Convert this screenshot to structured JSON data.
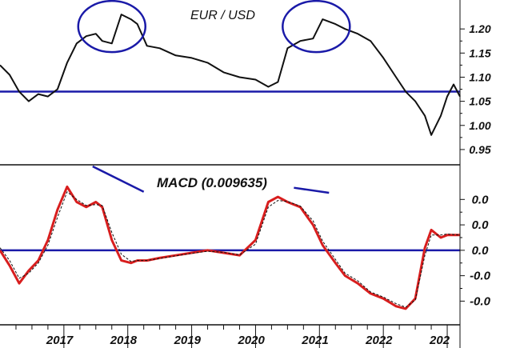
{
  "chart_data": [
    {
      "type": "line",
      "title": "EUR / USD",
      "xlabel": "",
      "ylabel": "",
      "x_ticks": [
        "2017",
        "2018",
        "2019",
        "2020",
        "2021",
        "2022",
        "202"
      ],
      "ylim": [
        0.92,
        1.26
      ],
      "y_ticks": [
        "1.20",
        "1.15",
        "1.10",
        "1.05",
        "1.00",
        "0.95"
      ],
      "y_tick_values": [
        1.2,
        1.15,
        1.1,
        1.05,
        1.0,
        0.95
      ],
      "reference_line": 1.07,
      "series": [
        {
          "color": "#111111",
          "x": [
            2016.0,
            2016.15,
            2016.3,
            2016.45,
            2016.6,
            2016.75,
            2016.9,
            2017.05,
            2017.2,
            2017.35,
            2017.5,
            2017.6,
            2017.75,
            2017.9,
            2018.05,
            2018.15,
            2018.3,
            2018.5,
            2018.75,
            2019.0,
            2019.25,
            2019.5,
            2019.75,
            2020.0,
            2020.2,
            2020.35,
            2020.5,
            2020.7,
            2020.9,
            2021.05,
            2021.25,
            2021.4,
            2021.6,
            2021.8,
            2022.0,
            2022.2,
            2022.35,
            2022.5,
            2022.65,
            2022.75,
            2022.9,
            2023.0,
            2023.1,
            2023.2
          ],
          "values": [
            1.125,
            1.105,
            1.07,
            1.05,
            1.065,
            1.06,
            1.075,
            1.13,
            1.17,
            1.185,
            1.19,
            1.175,
            1.17,
            1.23,
            1.22,
            1.21,
            1.165,
            1.16,
            1.145,
            1.14,
            1.13,
            1.11,
            1.1,
            1.095,
            1.08,
            1.09,
            1.16,
            1.175,
            1.18,
            1.22,
            1.21,
            1.2,
            1.19,
            1.175,
            1.14,
            1.1,
            1.07,
            1.05,
            1.02,
            0.98,
            1.02,
            1.06,
            1.085,
            1.06
          ]
        }
      ],
      "annotations": [
        {
          "type": "ellipse",
          "color": "#1a1aa8",
          "center_x": 2017.75,
          "center_y": 1.205
        },
        {
          "type": "ellipse",
          "color": "#1a1aa8",
          "center_x": 2020.95,
          "center_y": 1.205
        }
      ]
    },
    {
      "type": "line",
      "title": "MACD (0.009635)",
      "xlabel": "",
      "ylabel": "",
      "x_ticks": [
        "2017",
        "2018",
        "2019",
        "2020",
        "2021",
        "2022",
        "202"
      ],
      "ylim": [
        -0.0145,
        0.0165
      ],
      "y_ticks": [
        "0.0",
        "0.0",
        "0.0",
        "-0.0",
        "-0.0"
      ],
      "y_tick_values": [
        0.01,
        0.005,
        0.0,
        -0.005,
        -0.01
      ],
      "reference_line": 0.0,
      "series": [
        {
          "color": "#d81e1e",
          "x": [
            2016.0,
            2016.15,
            2016.3,
            2016.45,
            2016.6,
            2016.75,
            2016.9,
            2017.05,
            2017.2,
            2017.35,
            2017.5,
            2017.6,
            2017.75,
            2017.9,
            2018.05,
            2018.15,
            2018.3,
            2018.5,
            2018.75,
            2019.0,
            2019.25,
            2019.5,
            2019.75,
            2020.0,
            2020.2,
            2020.35,
            2020.5,
            2020.7,
            2020.9,
            2021.05,
            2021.25,
            2021.4,
            2021.6,
            2021.8,
            2022.0,
            2022.2,
            2022.35,
            2022.5,
            2022.65,
            2022.75,
            2022.9,
            2023.0,
            2023.1,
            2023.2
          ],
          "values": [
            0.0,
            -0.003,
            -0.0065,
            -0.004,
            -0.002,
            0.002,
            0.008,
            0.0125,
            0.0095,
            0.0085,
            0.0095,
            0.0085,
            0.002,
            -0.002,
            -0.0025,
            -0.002,
            -0.002,
            -0.0015,
            -0.001,
            -0.0005,
            0.0,
            -0.0005,
            -0.001,
            0.002,
            0.0095,
            0.0105,
            0.0095,
            0.0085,
            0.005,
            0.001,
            -0.0025,
            -0.005,
            -0.0065,
            -0.0085,
            -0.0095,
            -0.011,
            -0.0115,
            -0.0095,
            0.0005,
            0.004,
            0.0025,
            0.003,
            0.003,
            0.003
          ]
        },
        {
          "color": "#111111",
          "dashed": true,
          "x": [
            2016.0,
            2016.15,
            2016.3,
            2016.45,
            2016.6,
            2016.75,
            2016.9,
            2017.05,
            2017.2,
            2017.35,
            2017.5,
            2017.6,
            2017.75,
            2017.9,
            2018.05,
            2018.15,
            2018.3,
            2018.5,
            2018.75,
            2019.0,
            2019.25,
            2019.5,
            2019.75,
            2020.0,
            2020.2,
            2020.35,
            2020.5,
            2020.7,
            2020.9,
            2021.05,
            2021.25,
            2021.4,
            2021.6,
            2021.8,
            2022.0,
            2022.2,
            2022.35,
            2022.5,
            2022.65,
            2022.75,
            2022.9,
            2023.0,
            2023.1,
            2023.2
          ],
          "values": [
            0.0005,
            -0.002,
            -0.0055,
            -0.0045,
            -0.0025,
            0.001,
            0.0065,
            0.0115,
            0.01,
            0.0088,
            0.009,
            0.0088,
            0.0035,
            -0.0008,
            -0.0022,
            -0.002,
            -0.002,
            -0.0016,
            -0.0011,
            -0.0006,
            -0.0002,
            -0.0004,
            -0.0009,
            0.0012,
            0.0085,
            0.0098,
            0.0096,
            0.0087,
            0.0058,
            0.0018,
            -0.0018,
            -0.0045,
            -0.006,
            -0.0082,
            -0.0092,
            -0.0105,
            -0.0112,
            -0.0098,
            -0.001,
            0.003,
            0.003,
            0.0032,
            0.0031,
            0.003
          ]
        }
      ],
      "annotations": [
        {
          "type": "trendline",
          "color": "#1a1aa8",
          "x": [
            2017.45,
            2018.25
          ],
          "y": [
            0.0165,
            0.0115
          ]
        },
        {
          "type": "trendline",
          "color": "#1a1aa8",
          "x": [
            2020.6,
            2021.15
          ],
          "y": [
            0.0123,
            0.0113
          ]
        }
      ]
    }
  ]
}
